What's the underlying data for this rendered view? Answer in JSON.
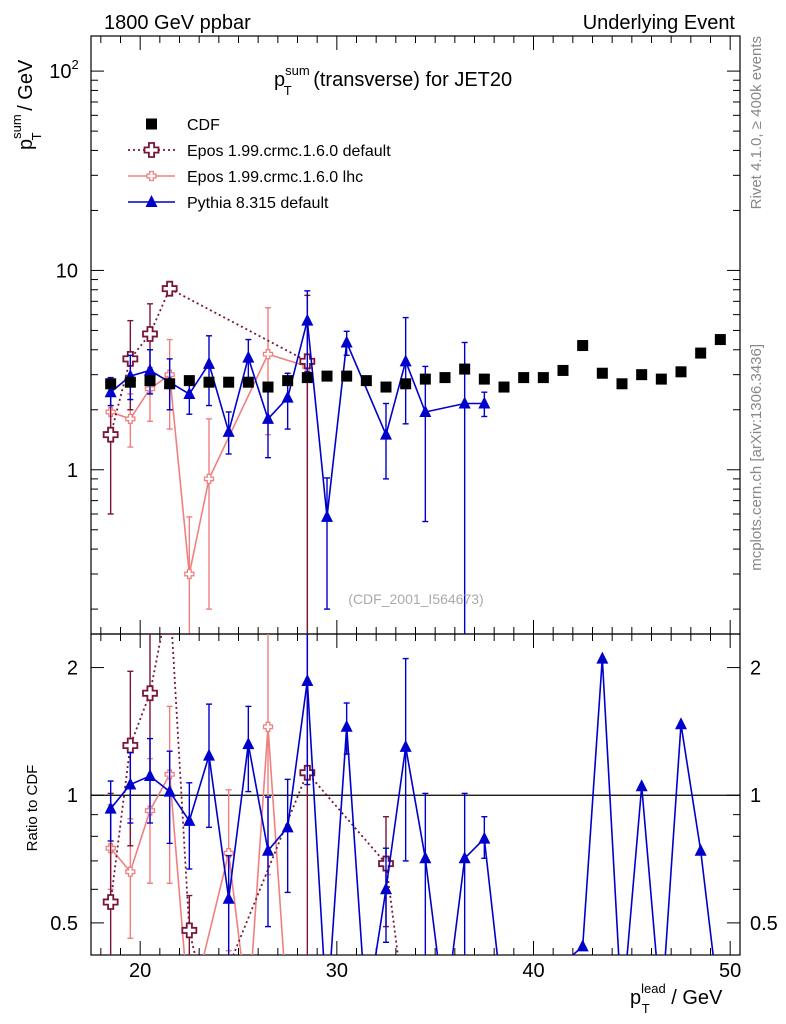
{
  "header": {
    "left": "1800 GeV ppbar",
    "right": "Underlying Event",
    "side_top": "Rivet 4.1.0, ≥ 400k events",
    "side_bottom": "mcplots.cern.ch [arXiv:1306.3436]"
  },
  "chart_data": [
    {
      "type": "scatter",
      "panel": "main",
      "title_parts": {
        "p": "p",
        "sup": "sum",
        "sub": "T",
        "rest": " (transverse) for JET20"
      },
      "ylabel_parts": {
        "p": "p",
        "sup": "sum",
        "sub": "T",
        "rest": " / GeV"
      },
      "yscale": "log",
      "ylim": [
        0.15,
        150
      ],
      "xlim": [
        17.5,
        50.5
      ],
      "y_ticks": [
        {
          "value": 1,
          "label": "1"
        },
        {
          "value": 10,
          "label": "10"
        },
        {
          "value": 100,
          "label": "10",
          "sup": "2"
        }
      ],
      "annotation": "(CDF_2001_I564673)",
      "legend_position": "top-left",
      "series": [
        {
          "name": "CDF",
          "color": "#000000",
          "marker": "square",
          "line": "none",
          "x": [
            18.5,
            19.5,
            20.5,
            21.5,
            22.5,
            23.5,
            24.5,
            25.5,
            26.5,
            27.5,
            28.5,
            29.5,
            30.5,
            31.5,
            32.5,
            33.5,
            34.5,
            35.5,
            36.5,
            37.5,
            38.5,
            39.5,
            40.5,
            41.5,
            42.5,
            43.5,
            44.5,
            45.5,
            46.5,
            47.5,
            48.5,
            49.5
          ],
          "y": [
            2.7,
            2.75,
            2.8,
            2.7,
            2.8,
            2.75,
            2.75,
            2.75,
            2.6,
            2.8,
            2.9,
            2.95,
            2.95,
            2.8,
            2.6,
            2.7,
            2.85,
            2.9,
            3.2,
            2.85,
            2.6,
            2.9,
            2.9,
            3.15,
            4.2,
            3.05,
            2.7,
            3.0,
            2.85,
            3.1,
            3.85,
            4.5
          ]
        },
        {
          "name": "Epos 1.99.crmc.1.6.0 default",
          "color": "#7a1538",
          "marker": "open-cross",
          "line": "dotted",
          "x": [
            18.5,
            19.5,
            20.5,
            21.5,
            28.5
          ],
          "y": [
            1.5,
            3.6,
            4.8,
            8.1,
            3.5
          ],
          "err_low": [
            0.9,
            1.6,
            1.9,
            0.3,
            3.5
          ],
          "err_high": [
            1.3,
            2.0,
            2.0,
            0.3,
            4.0
          ]
        },
        {
          "name": "Epos 1.99.crmc.1.6.0 lhc",
          "color": "#f08080",
          "marker": "small-open-cross",
          "line": "solid",
          "x": [
            18.5,
            19.5,
            20.5,
            21.5,
            22.5,
            23.5,
            26.5,
            28.5
          ],
          "y": [
            1.95,
            1.8,
            2.55,
            3.0,
            0.3,
            0.9,
            3.8,
            3.3
          ],
          "err_low": [
            0.4,
            0.5,
            0.8,
            1.4,
            0.2,
            0.7,
            2.3,
            3.3
          ],
          "err_high": [
            0.5,
            0.6,
            0.7,
            1.5,
            0.28,
            0.9,
            2.7,
            0.5
          ]
        },
        {
          "name": "Pythia 8.315 default",
          "color": "#0000cc",
          "marker": "triangle",
          "line": "solid",
          "x": [
            18.5,
            19.5,
            20.5,
            21.5,
            22.5,
            23.5,
            24.5,
            25.5,
            26.5,
            27.5,
            28.5,
            29.5,
            30.5,
            32.5,
            33.5,
            34.5,
            36.5,
            37.5
          ],
          "y": [
            2.45,
            2.95,
            3.15,
            2.75,
            2.4,
            3.4,
            1.55,
            3.65,
            1.8,
            2.3,
            5.6,
            0.58,
            4.35,
            1.5,
            3.5,
            1.95,
            2.15,
            2.15
          ],
          "err_low": [
            0.35,
            0.7,
            0.75,
            0.75,
            0.5,
            1.3,
            0.35,
            0.8,
            0.65,
            0.7,
            2.5,
            0.38,
            0.6,
            0.6,
            1.8,
            1.4,
            2.15,
            0.3
          ],
          "err_high": [
            0.45,
            0.8,
            0.85,
            0.85,
            0.55,
            1.3,
            0.4,
            0.85,
            0.75,
            0.75,
            2.3,
            0.33,
            0.6,
            0.65,
            2.3,
            1.35,
            2.2,
            0.3
          ]
        }
      ]
    },
    {
      "type": "line",
      "panel": "ratio",
      "ylabel": "Ratio to CDF",
      "yscale": "log",
      "ylim": [
        0.42,
        2.4
      ],
      "xlim": [
        17.5,
        50.5
      ],
      "xlabel_parts": {
        "p": "p",
        "sup": "lead",
        "sub": "T",
        "rest": " / GeV"
      },
      "x_ticks": [
        {
          "value": 20,
          "label": "20"
        },
        {
          "value": 30,
          "label": "30"
        },
        {
          "value": 40,
          "label": "40"
        },
        {
          "value": 50,
          "label": "50"
        }
      ],
      "y_ticks": [
        {
          "value": 0.5,
          "label": "0.5"
        },
        {
          "value": 1,
          "label": "1"
        },
        {
          "value": 2,
          "label": "2"
        }
      ],
      "reference_line": 1,
      "series": [
        {
          "name": "Epos 1.99.crmc.1.6.0 default",
          "color": "#7a1538",
          "marker": "open-cross",
          "line": "dotted",
          "x": [
            18.5,
            19.5,
            20.5,
            21.5,
            22.5,
            23.5,
            28.5,
            32.5,
            33.5
          ],
          "y": [
            0.56,
            1.31,
            1.74,
            3.0,
            0.48,
            0.3,
            1.13,
            0.69,
            0.3
          ],
          "err_low": [
            0.3,
            0.55,
            0.65,
            0.2,
            0.1,
            0.0,
            1.13,
            0.2,
            0.0
          ],
          "err_high": [
            0.45,
            0.65,
            0.7,
            0.2,
            0.1,
            0.0,
            1.4,
            0.2,
            0.0
          ],
          "markers_shown": [
            true,
            true,
            true,
            false,
            true,
            false,
            true,
            true,
            false
          ]
        },
        {
          "name": "Epos 1.99.crmc.1.6.0 lhc",
          "color": "#f08080",
          "marker": "small-open-cross",
          "line": "solid",
          "x": [
            18.5,
            19.5,
            20.5,
            21.5,
            22.5,
            24.5,
            25.5,
            26.5,
            27.5
          ],
          "y": [
            0.75,
            0.66,
            0.92,
            1.12,
            0.3,
            0.73,
            0.3,
            1.45,
            0.3
          ],
          "err_low": [
            0.15,
            0.2,
            0.3,
            0.5,
            0.0,
            0.3,
            0.0,
            0.8,
            0.0
          ],
          "err_high": [
            0.2,
            0.22,
            0.3,
            0.5,
            0.0,
            0.3,
            0.0,
            1.5,
            0.0
          ],
          "markers_shown": [
            true,
            true,
            true,
            true,
            false,
            true,
            false,
            true,
            false
          ]
        },
        {
          "name": "Pythia 8.315 default",
          "color": "#0000cc",
          "marker": "triangle",
          "line": "solid",
          "x": [
            18.5,
            19.5,
            20.5,
            21.5,
            22.5,
            23.5,
            24.5,
            25.5,
            26.5,
            27.5,
            28.5,
            29.5,
            30.5,
            31.5,
            32.5,
            33.5,
            34.5,
            35.5,
            36.5,
            37.5,
            38.5,
            42.5,
            43.5,
            44.5,
            45.5,
            46.5,
            47.5,
            48.5,
            49.5
          ],
          "y": [
            0.93,
            1.06,
            1.11,
            1.02,
            0.87,
            1.24,
            0.57,
            1.32,
            0.74,
            0.84,
            1.86,
            0.3,
            1.45,
            0.3,
            0.6,
            1.3,
            0.71,
            0.3,
            0.71,
            0.79,
            0.3,
            0.44,
            2.1,
            0.3,
            1.05,
            0.3,
            1.47,
            0.74,
            0.3
          ],
          "err_low": [
            0.15,
            0.2,
            0.25,
            0.25,
            0.2,
            0.4,
            0.15,
            0.3,
            0.25,
            0.25,
            0.8,
            0.0,
            0.2,
            0.0,
            0.15,
            0.6,
            0.3,
            0.0,
            0.3,
            0.08,
            0.0,
            0.0,
            0.0,
            0.0,
            0.0,
            0.0,
            0.0,
            0.0,
            0.0
          ],
          "err_high": [
            0.15,
            0.2,
            0.25,
            0.25,
            0.2,
            0.4,
            0.15,
            0.3,
            0.25,
            0.25,
            0.8,
            0.0,
            0.2,
            0.0,
            0.15,
            0.8,
            0.3,
            0.0,
            0.3,
            0.1,
            0.0,
            0.0,
            0.0,
            0.0,
            0.0,
            0.0,
            0.0,
            0.0,
            0.0
          ],
          "markers_shown": [
            true,
            true,
            true,
            true,
            true,
            true,
            true,
            true,
            true,
            true,
            true,
            false,
            true,
            false,
            true,
            true,
            true,
            false,
            true,
            true,
            false,
            true,
            true,
            false,
            true,
            false,
            true,
            true,
            false
          ]
        }
      ]
    }
  ]
}
